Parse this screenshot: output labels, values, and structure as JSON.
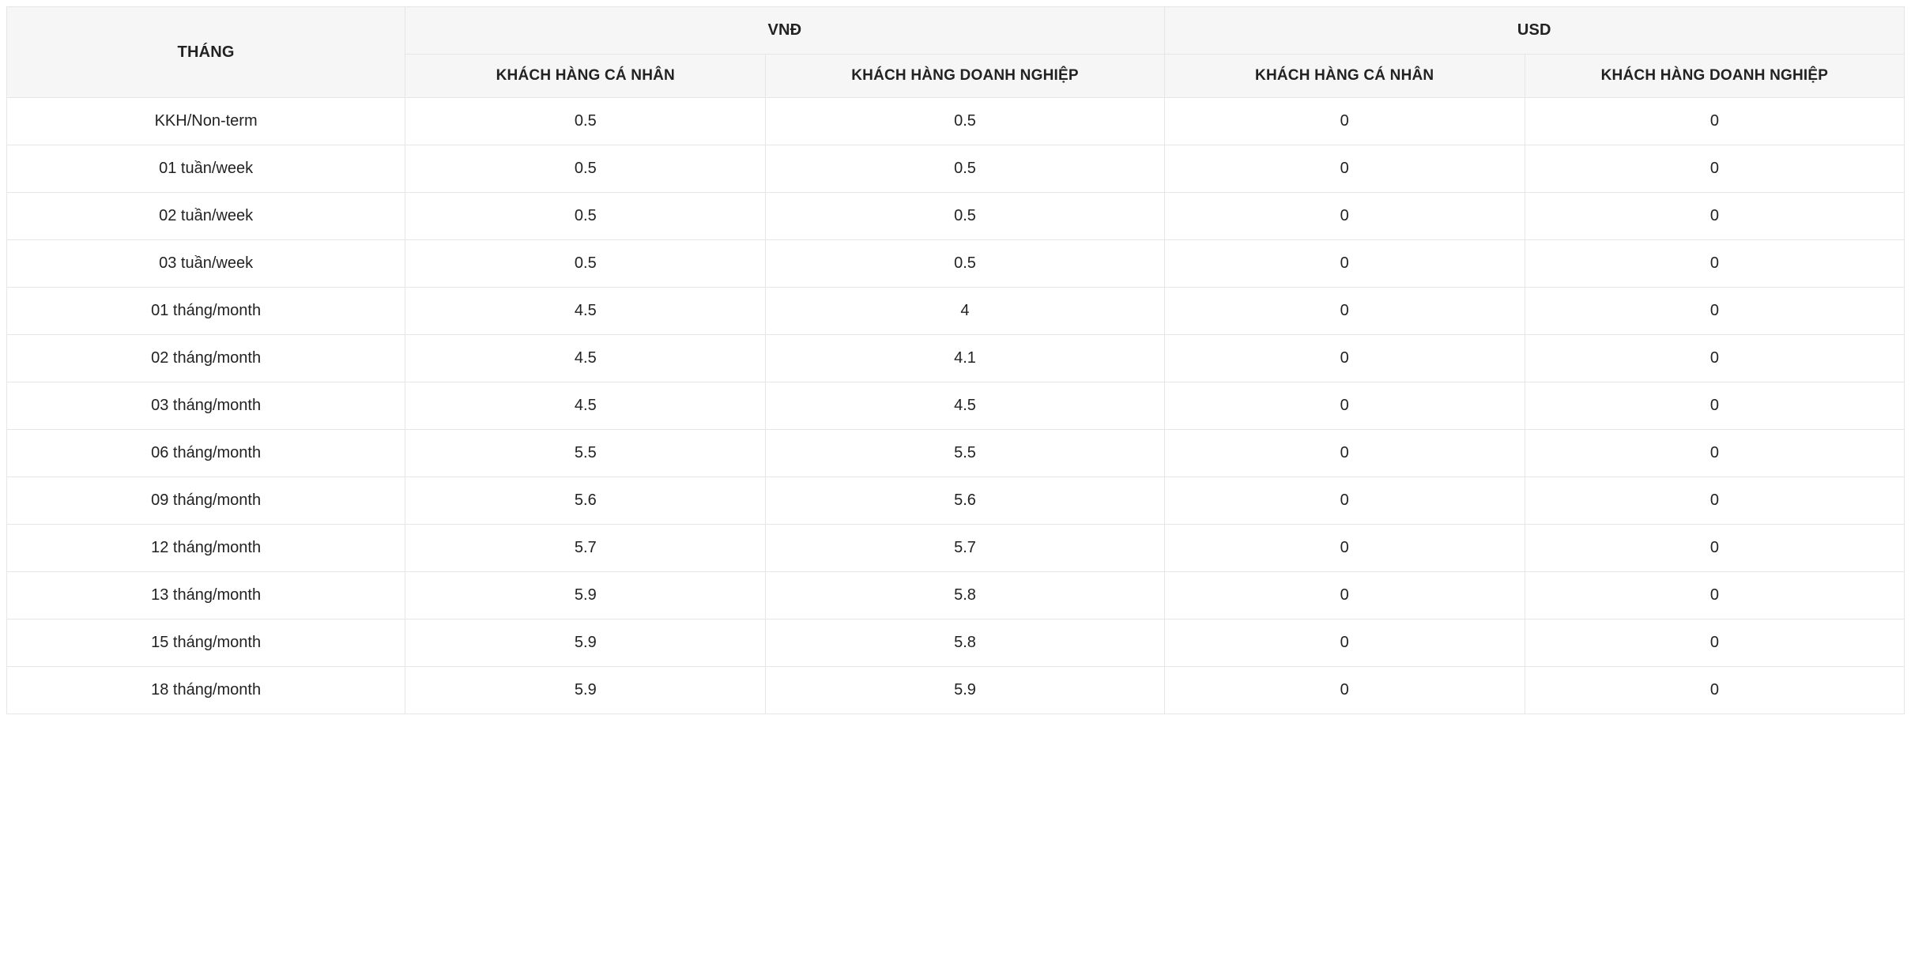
{
  "table": {
    "type": "table",
    "background_color": "#ffffff",
    "border_color": "#e6e6e6",
    "header_background": "#f6f6f6",
    "text_color": "#222222",
    "font_family": "-apple-system, Segoe UI, Helvetica, Arial, sans-serif",
    "header_fontsize_pt": 15,
    "subheader_fontsize_pt": 14,
    "cell_fontsize_pt": 15,
    "column_widths_pct": [
      21,
      19,
      21,
      19,
      20
    ],
    "headers": {
      "period": "THÁNG",
      "vnd": "VNĐ",
      "usd": "USD",
      "individual": "KHÁCH HÀNG CÁ NHÂN",
      "corporate": "KHÁCH HÀNG DOANH NGHIỆP"
    },
    "columns": [
      "THÁNG",
      "VNĐ · KHÁCH HÀNG CÁ NHÂN",
      "VNĐ · KHÁCH HÀNG DOANH NGHIỆP",
      "USD · KHÁCH HÀNG CÁ NHÂN",
      "USD · KHÁCH HÀNG DOANH NGHIỆP"
    ],
    "rows": [
      {
        "period": "KKH/Non-term",
        "vnd_ind": "0.5",
        "vnd_corp": "0.5",
        "usd_ind": "0",
        "usd_corp": "0"
      },
      {
        "period": "01 tuần/week",
        "vnd_ind": "0.5",
        "vnd_corp": "0.5",
        "usd_ind": "0",
        "usd_corp": "0"
      },
      {
        "period": "02 tuần/week",
        "vnd_ind": "0.5",
        "vnd_corp": "0.5",
        "usd_ind": "0",
        "usd_corp": "0"
      },
      {
        "period": "03 tuần/week",
        "vnd_ind": "0.5",
        "vnd_corp": "0.5",
        "usd_ind": "0",
        "usd_corp": "0"
      },
      {
        "period": "01 tháng/month",
        "vnd_ind": "4.5",
        "vnd_corp": "4",
        "usd_ind": "0",
        "usd_corp": "0"
      },
      {
        "period": "02 tháng/month",
        "vnd_ind": "4.5",
        "vnd_corp": "4.1",
        "usd_ind": "0",
        "usd_corp": "0"
      },
      {
        "period": "03 tháng/month",
        "vnd_ind": "4.5",
        "vnd_corp": "4.5",
        "usd_ind": "0",
        "usd_corp": "0"
      },
      {
        "period": "06 tháng/month",
        "vnd_ind": "5.5",
        "vnd_corp": "5.5",
        "usd_ind": "0",
        "usd_corp": "0"
      },
      {
        "period": "09 tháng/month",
        "vnd_ind": "5.6",
        "vnd_corp": "5.6",
        "usd_ind": "0",
        "usd_corp": "0"
      },
      {
        "period": "12 tháng/month",
        "vnd_ind": "5.7",
        "vnd_corp": "5.7",
        "usd_ind": "0",
        "usd_corp": "0"
      },
      {
        "period": "13 tháng/month",
        "vnd_ind": "5.9",
        "vnd_corp": "5.8",
        "usd_ind": "0",
        "usd_corp": "0"
      },
      {
        "period": "15 tháng/month",
        "vnd_ind": "5.9",
        "vnd_corp": "5.8",
        "usd_ind": "0",
        "usd_corp": "0"
      },
      {
        "period": "18 tháng/month",
        "vnd_ind": "5.9",
        "vnd_corp": "5.9",
        "usd_ind": "0",
        "usd_corp": "0"
      }
    ]
  }
}
